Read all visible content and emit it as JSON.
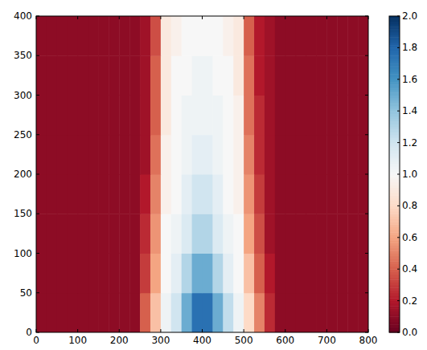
{
  "chart_data": {
    "type": "heatmap",
    "xlim": [
      0,
      800
    ],
    "ylim": [
      0,
      400
    ],
    "xticks": [
      0,
      100,
      200,
      300,
      400,
      500,
      600,
      700,
      800
    ],
    "yticks": [
      0,
      50,
      100,
      150,
      200,
      250,
      300,
      350,
      400
    ],
    "xbins": [
      0,
      25,
      50,
      75,
      100,
      125,
      150,
      175,
      200,
      225,
      250,
      275,
      300,
      325,
      350,
      375,
      400,
      425,
      450,
      475,
      500,
      525,
      550,
      575,
      600,
      625,
      650,
      675,
      700,
      725,
      750,
      775,
      800
    ],
    "ybins": [
      0,
      50,
      100,
      150,
      200,
      250,
      300,
      350,
      400
    ],
    "cells": [
      [
        0.1,
        0.1,
        0.1,
        0.1,
        0.1,
        0.1,
        0.1,
        0.1,
        0.1,
        0.1,
        0.4,
        0.7,
        1.05,
        1.2,
        1.5,
        1.75,
        1.75,
        1.5,
        1.25,
        1.05,
        0.8,
        0.5,
        0.25,
        0.1,
        0.1,
        0.1,
        0.1,
        0.1,
        0.1,
        0.1,
        0.1,
        0.1
      ],
      [
        0.1,
        0.1,
        0.1,
        0.1,
        0.1,
        0.1,
        0.1,
        0.1,
        0.1,
        0.1,
        0.3,
        0.6,
        1.0,
        1.1,
        1.3,
        1.5,
        1.5,
        1.3,
        1.1,
        1.0,
        0.7,
        0.4,
        0.2,
        0.1,
        0.1,
        0.1,
        0.1,
        0.1,
        0.1,
        0.1,
        0.1,
        0.1
      ],
      [
        0.1,
        0.1,
        0.1,
        0.1,
        0.1,
        0.1,
        0.1,
        0.1,
        0.1,
        0.1,
        0.25,
        0.55,
        1.0,
        1.05,
        1.15,
        1.3,
        1.3,
        1.15,
        1.05,
        1.0,
        0.6,
        0.35,
        0.15,
        0.1,
        0.1,
        0.1,
        0.1,
        0.1,
        0.1,
        0.1,
        0.1,
        0.1
      ],
      [
        0.1,
        0.1,
        0.1,
        0.1,
        0.1,
        0.1,
        0.1,
        0.1,
        0.1,
        0.1,
        0.2,
        0.5,
        0.95,
        1.0,
        1.1,
        1.2,
        1.2,
        1.1,
        1.0,
        0.95,
        0.55,
        0.3,
        0.15,
        0.1,
        0.1,
        0.1,
        0.1,
        0.1,
        0.1,
        0.1,
        0.1,
        0.1
      ],
      [
        0.1,
        0.1,
        0.1,
        0.1,
        0.1,
        0.1,
        0.1,
        0.1,
        0.1,
        0.1,
        0.15,
        0.45,
        0.95,
        1.0,
        1.05,
        1.1,
        1.1,
        1.05,
        1.0,
        0.95,
        0.5,
        0.25,
        0.15,
        0.1,
        0.1,
        0.1,
        0.1,
        0.1,
        0.1,
        0.1,
        0.1,
        0.1
      ],
      [
        0.1,
        0.1,
        0.1,
        0.1,
        0.1,
        0.1,
        0.1,
        0.1,
        0.1,
        0.1,
        0.15,
        0.4,
        0.9,
        1.0,
        1.05,
        1.05,
        1.05,
        1.05,
        1.0,
        0.95,
        0.45,
        0.25,
        0.15,
        0.1,
        0.1,
        0.1,
        0.1,
        0.1,
        0.1,
        0.1,
        0.1,
        0.1
      ],
      [
        0.1,
        0.1,
        0.1,
        0.1,
        0.1,
        0.1,
        0.1,
        0.1,
        0.1,
        0.1,
        0.15,
        0.4,
        0.9,
        1.0,
        1.0,
        1.05,
        1.05,
        1.0,
        1.0,
        0.9,
        0.45,
        0.2,
        0.15,
        0.1,
        0.1,
        0.1,
        0.1,
        0.1,
        0.1,
        0.1,
        0.1,
        0.1
      ],
      [
        0.1,
        0.1,
        0.1,
        0.1,
        0.1,
        0.1,
        0.1,
        0.1,
        0.1,
        0.1,
        0.15,
        0.35,
        0.9,
        0.95,
        1.0,
        1.0,
        1.0,
        1.0,
        0.95,
        0.9,
        0.4,
        0.2,
        0.15,
        0.1,
        0.1,
        0.1,
        0.1,
        0.1,
        0.1,
        0.1,
        0.1,
        0.1
      ]
    ],
    "colorbar": {
      "range": [
        0,
        2
      ],
      "ticks": [
        {
          "value": 0,
          "label": "0.0"
        },
        {
          "value": 0.2,
          "label": "0.2"
        },
        {
          "value": 0.4,
          "label": "0.4"
        },
        {
          "value": 0.6,
          "label": "0.6"
        },
        {
          "value": 0.8,
          "label": "0.8"
        },
        {
          "value": 1,
          "label": "1.0"
        },
        {
          "value": 1.2,
          "label": "1.2"
        },
        {
          "value": 1.4,
          "label": "1.4"
        },
        {
          "value": 1.6,
          "label": "1.6"
        },
        {
          "value": 1.8,
          "label": "1.8"
        },
        {
          "value": 2,
          "label": "2.0"
        }
      ]
    }
  }
}
